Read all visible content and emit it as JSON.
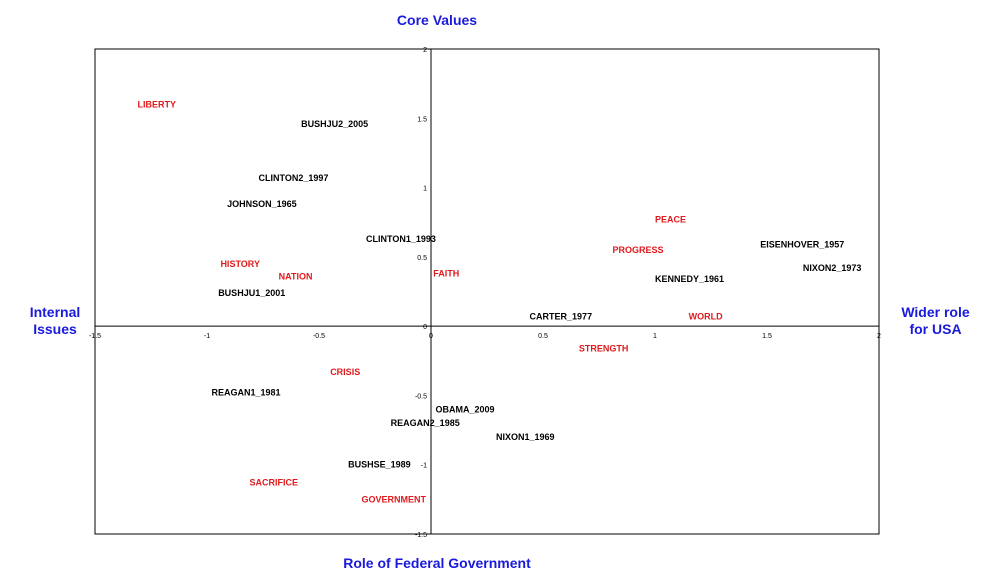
{
  "colors": {
    "term": "#e0191c",
    "speech": "#000000",
    "axis_label": "#1a1adc"
  },
  "outer_labels": {
    "top": "Core Values",
    "bottom": "Role of Federal Government",
    "left_line1": "Internal",
    "left_line2": "Issues",
    "right_line1": "Wider role",
    "right_line2": "for USA"
  },
  "chart_data": {
    "type": "scatter",
    "xlim": [
      -1.5,
      2
    ],
    "ylim": [
      -1.5,
      2
    ],
    "grid": false,
    "x_ticks": [
      {
        "value": -1.5,
        "label": "-1.5"
      },
      {
        "value": -1,
        "label": "-1"
      },
      {
        "value": -0.5,
        "label": "-0.5"
      },
      {
        "value": 0,
        "label": "0"
      },
      {
        "value": 0.5,
        "label": "0.5"
      },
      {
        "value": 1,
        "label": "1"
      },
      {
        "value": 1.5,
        "label": "1.5"
      },
      {
        "value": 2,
        "label": "2"
      }
    ],
    "y_ticks": [
      {
        "value": 2,
        "label": "2"
      },
      {
        "value": 1.5,
        "label": "1.5"
      },
      {
        "value": 1,
        "label": "1"
      },
      {
        "value": 0.5,
        "label": "0.5"
      },
      {
        "value": 0,
        "label": "0"
      },
      {
        "value": -0.5,
        "label": "-0.5"
      },
      {
        "value": -1,
        "label": "-1"
      },
      {
        "value": -1.5,
        "label": "-1.5"
      }
    ],
    "series": [
      {
        "points": [
          {
            "label": "LIBERTY",
            "x": -1.31,
            "y": 1.6
          },
          {
            "label": "HISTORY",
            "x": -0.94,
            "y": 0.45
          },
          {
            "label": "NATION",
            "x": -0.68,
            "y": 0.36
          },
          {
            "label": "FAITH",
            "x": 0.01,
            "y": 0.38
          },
          {
            "label": "PEACE",
            "x": 1.0,
            "y": 0.77
          },
          {
            "label": "PROGRESS",
            "x": 0.81,
            "y": 0.55
          },
          {
            "label": "WORLD",
            "x": 1.15,
            "y": 0.07
          },
          {
            "label": "STRENGTH",
            "x": 0.66,
            "y": -0.16
          },
          {
            "label": "CRISIS",
            "x": -0.45,
            "y": -0.33
          },
          {
            "label": "SACRIFICE",
            "x": -0.81,
            "y": -1.13
          },
          {
            "label": "GOVERNMENT",
            "x": -0.31,
            "y": -1.25
          }
        ]
      },
      {
        "points": [
          {
            "label": "BUSHJU2_2005",
            "x": -0.58,
            "y": 1.46
          },
          {
            "label": "CLINTON2_1997",
            "x": -0.77,
            "y": 1.07
          },
          {
            "label": "JOHNSON_1965",
            "x": -0.91,
            "y": 0.88
          },
          {
            "label": "CLINTON1_1993",
            "x": -0.29,
            "y": 0.63
          },
          {
            "label": "BUSHJU1_2001",
            "x": -0.95,
            "y": 0.24
          },
          {
            "label": "EISENHOVER_1957",
            "x": 1.47,
            "y": 0.59
          },
          {
            "label": "NIXON2_1973",
            "x": 1.66,
            "y": 0.42
          },
          {
            "label": "KENNEDY_1961",
            "x": 1.0,
            "y": 0.34
          },
          {
            "label": "CARTER_1977",
            "x": 0.44,
            "y": 0.07
          },
          {
            "label": "REAGAN1_1981",
            "x": -0.98,
            "y": -0.48
          },
          {
            "label": "OBAMA_2009",
            "x": 0.02,
            "y": -0.6
          },
          {
            "label": "REAGAN2_1985",
            "x": -0.18,
            "y": -0.7
          },
          {
            "label": "NIXON1_1969",
            "x": 0.29,
            "y": -0.8
          },
          {
            "label": "BUSHSE_1989",
            "x": -0.37,
            "y": -1.0
          }
        ]
      }
    ]
  }
}
